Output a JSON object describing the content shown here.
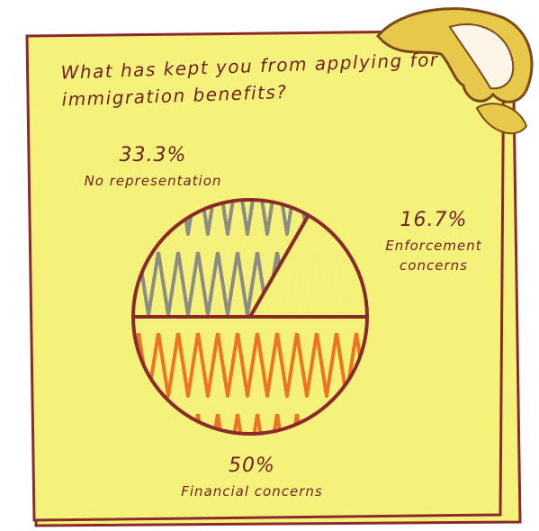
{
  "chart_data": {
    "type": "pie",
    "title": "What has kept you from applying for immigration benefits?",
    "categories": [
      "No representation",
      "Enforcement concerns",
      "Financial concerns"
    ],
    "values": [
      33.3,
      16.7,
      50
    ],
    "value_labels": [
      "33.3%",
      "16.7%",
      "50%"
    ],
    "colors": [
      "#8c8c82",
      "#f4f07c",
      "#f07322"
    ]
  }
}
